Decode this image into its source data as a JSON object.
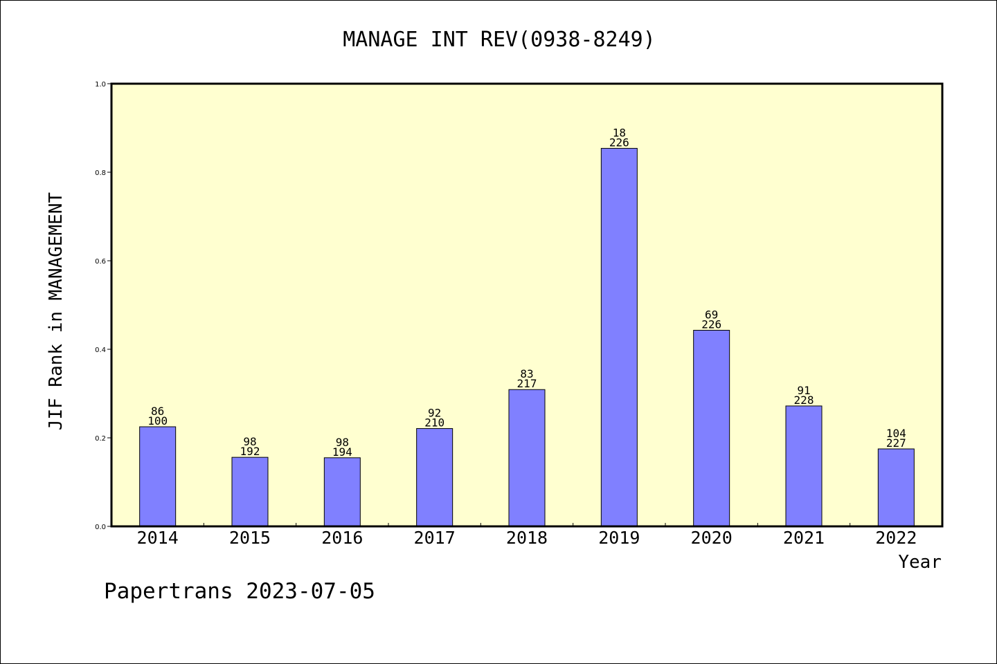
{
  "chart_data": {
    "type": "bar",
    "title": "MANAGE INT REV(0938-8249)",
    "xlabel": "Year",
    "ylabel": "JIF Rank in MANAGEMENT",
    "categories": [
      "2014",
      "2015",
      "2016",
      "2017",
      "2018",
      "2019",
      "2020",
      "2021",
      "2022"
    ],
    "values": [
      0.225,
      0.156,
      0.155,
      0.221,
      0.309,
      0.854,
      0.443,
      0.272,
      0.175
    ],
    "bar_labels": [
      {
        "rank": "86",
        "total": "100"
      },
      {
        "rank": "98",
        "total": "192"
      },
      {
        "rank": "98",
        "total": "194"
      },
      {
        "rank": "92",
        "total": "210"
      },
      {
        "rank": "83",
        "total": "217"
      },
      {
        "rank": "18",
        "total": "226"
      },
      {
        "rank": "69",
        "total": "226"
      },
      {
        "rank": "91",
        "total": "228"
      },
      {
        "rank": "104",
        "total": "227"
      }
    ],
    "ylim": [
      0,
      1.0
    ],
    "yticks": [
      "0.0",
      "0.2",
      "0.4",
      "0.6",
      "0.8",
      "1.0"
    ],
    "grid": false,
    "legend": "none",
    "colors": {
      "plot_background": "#ffffd0",
      "bar_fill": "#8080ff",
      "bar_stroke": "#000000",
      "axis": "#000000"
    }
  },
  "footer": {
    "text": "Papertrans 2023-07-05"
  }
}
